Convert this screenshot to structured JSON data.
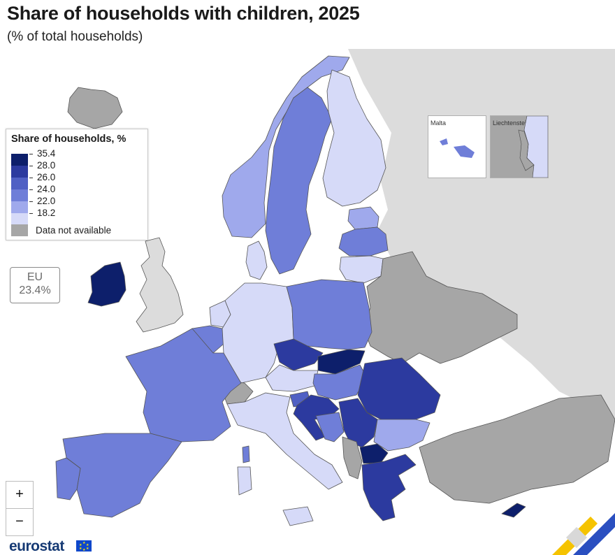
{
  "title": "Share of households with children, 2025",
  "subtitle": "(% of total households)",
  "legend": {
    "title": "Share of households, %",
    "breaks": [
      "35.4",
      "28.0",
      "26.0",
      "24.0",
      "22.0",
      "18.2"
    ],
    "colors": [
      "#0d1f6b",
      "#2c3a9f",
      "#5060c4",
      "#6f7ed8",
      "#9fa9ec",
      "#d6daf8"
    ],
    "na_label": "Data not available",
    "na_color": "#a6a6a6"
  },
  "eu": {
    "label": "EU",
    "value": "23.4%"
  },
  "insets": {
    "malta": "Malta",
    "liechtenstein": "Liechtenstein"
  },
  "zoom": {
    "in": "+",
    "out": "−"
  },
  "logo": "eurostat",
  "map": {
    "sea_color": "#ffffff",
    "non_eu_color": "#dcdcdc",
    "na_color": "#a6a6a6",
    "border_color": "#555555"
  }
}
